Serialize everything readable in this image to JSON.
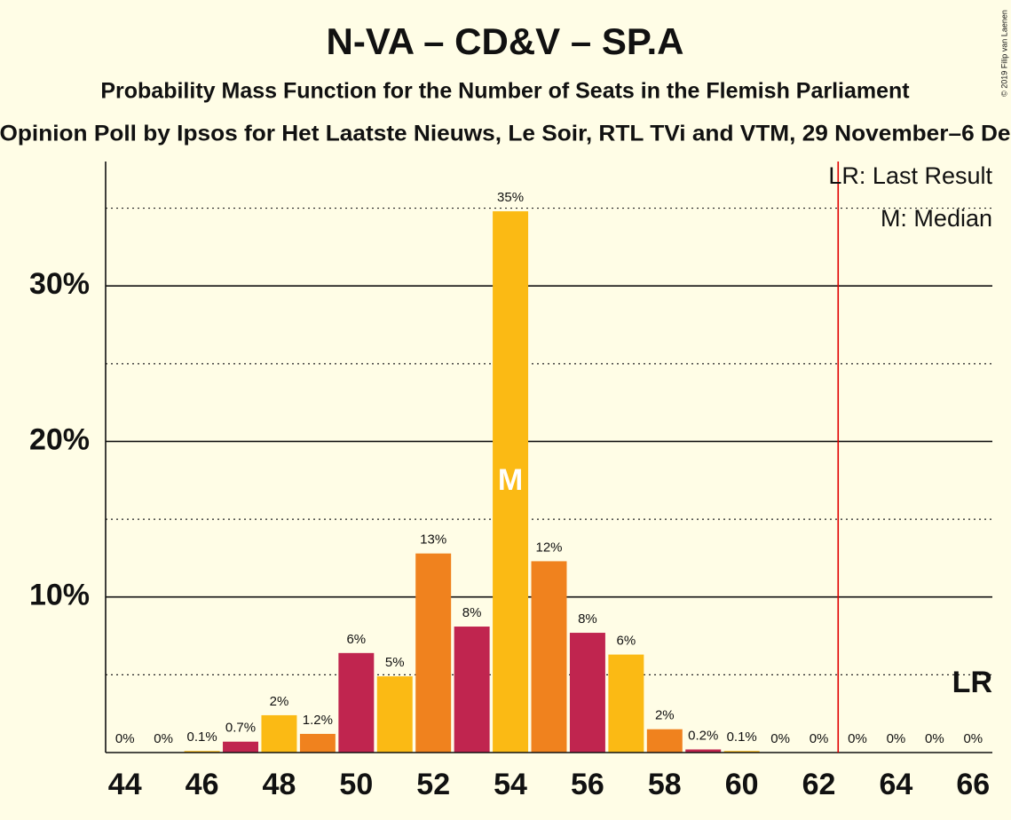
{
  "chart_data": {
    "type": "bar",
    "title": "N-VA – CD&V – SP.A",
    "subtitle": "Probability Mass Function for the Number of Seats in the Flemish Parliament",
    "subtitle2": "Opinion Poll by Ipsos for Het Laatste Nieuws, Le Soir, RTL TVi and VTM, 29 November–6 De",
    "copyright": "© 2019 Filip van Laenen",
    "x": [
      44,
      45,
      46,
      47,
      48,
      49,
      50,
      51,
      52,
      53,
      54,
      55,
      56,
      57,
      58,
      59,
      60,
      61,
      62,
      63,
      64,
      65,
      66
    ],
    "values": [
      0,
      0,
      0.1,
      0.7,
      2.4,
      1.2,
      6.4,
      4.9,
      12.8,
      8.1,
      34.8,
      12.3,
      7.7,
      6.3,
      1.5,
      0.2,
      0.1,
      0,
      0,
      0,
      0,
      0,
      0
    ],
    "value_labels": [
      "0%",
      "0%",
      "0.1%",
      "0.7%",
      "2%",
      "1.2%",
      "6%",
      "5%",
      "13%",
      "8%",
      "35%",
      "12%",
      "8%",
      "6%",
      "2%",
      "0.2%",
      "0.1%",
      "0%",
      "0%",
      "0%",
      "0%",
      "0%",
      "0%"
    ],
    "colors": [
      "#F0821E",
      "#C0254F",
      "#FBBA14",
      "#C0254F",
      "#FBBA14",
      "#F0821E",
      "#C0254F",
      "#FBBA14",
      "#F0821E",
      "#C0254F",
      "#FBBA14",
      "#F0821E",
      "#C0254F",
      "#FBBA14",
      "#F0821E",
      "#C0254F",
      "#FBBA14",
      "#F0821E",
      "#C0254F",
      "#FBBA14",
      "#F0821E",
      "#C0254F",
      "#FBBA14"
    ],
    "xlim": [
      43.5,
      66.5
    ],
    "xticks": [
      44,
      46,
      48,
      50,
      52,
      54,
      56,
      58,
      60,
      62,
      64,
      66
    ],
    "ylim": [
      0,
      38
    ],
    "yticks": [
      {
        "value": 10,
        "label": "10%"
      },
      {
        "value": 20,
        "label": "20%"
      },
      {
        "value": 30,
        "label": "30%"
      }
    ],
    "minor_grid": [
      5,
      15,
      25,
      35
    ],
    "grid": true,
    "median": 54,
    "median_label": "M",
    "last_result_line": 62.5,
    "last_result_label": "LR",
    "legend": [
      "LR: Last Result",
      "M: Median"
    ],
    "legend_position": "upper right"
  }
}
